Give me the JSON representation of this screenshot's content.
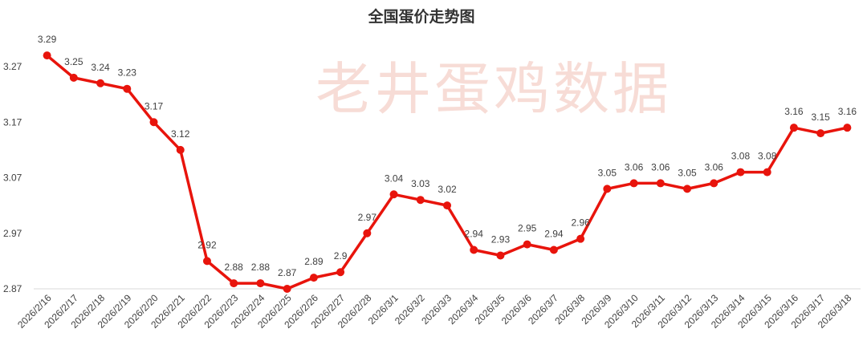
{
  "chart_data": {
    "type": "line",
    "title": "全国蛋价走势图",
    "watermark": "老井蛋鸡数据",
    "categories": [
      "2026/2/16",
      "2026/2/17",
      "2026/2/18",
      "2026/2/19",
      "2026/2/20",
      "2026/2/21",
      "2026/2/22",
      "2026/2/23",
      "2026/2/24",
      "2026/2/25",
      "2026/2/26",
      "2026/2/27",
      "2026/2/28",
      "2026/3/1",
      "2026/3/2",
      "2026/3/3",
      "2026/3/4",
      "2026/3/5",
      "2026/3/6",
      "2026/3/7",
      "2026/3/8",
      "2026/3/9",
      "2026/3/10",
      "2026/3/11",
      "2026/3/12",
      "2026/3/13",
      "2026/3/14",
      "2026/3/15",
      "2026/3/16",
      "2026/3/17",
      "2026/3/18"
    ],
    "values": [
      3.29,
      3.25,
      3.24,
      3.23,
      3.17,
      3.12,
      2.92,
      2.88,
      2.88,
      2.87,
      2.89,
      2.9,
      2.97,
      3.04,
      3.03,
      3.02,
      2.94,
      2.93,
      2.95,
      2.94,
      2.96,
      3.05,
      3.06,
      3.06,
      3.05,
      3.06,
      3.08,
      3.08,
      3.16,
      3.15,
      3.16
    ],
    "color": "#e8140c",
    "ylim": [
      2.87,
      3.35
    ],
    "yticks": [
      2.87,
      2.97,
      3.07,
      3.17,
      3.27
    ],
    "grid": false
  }
}
